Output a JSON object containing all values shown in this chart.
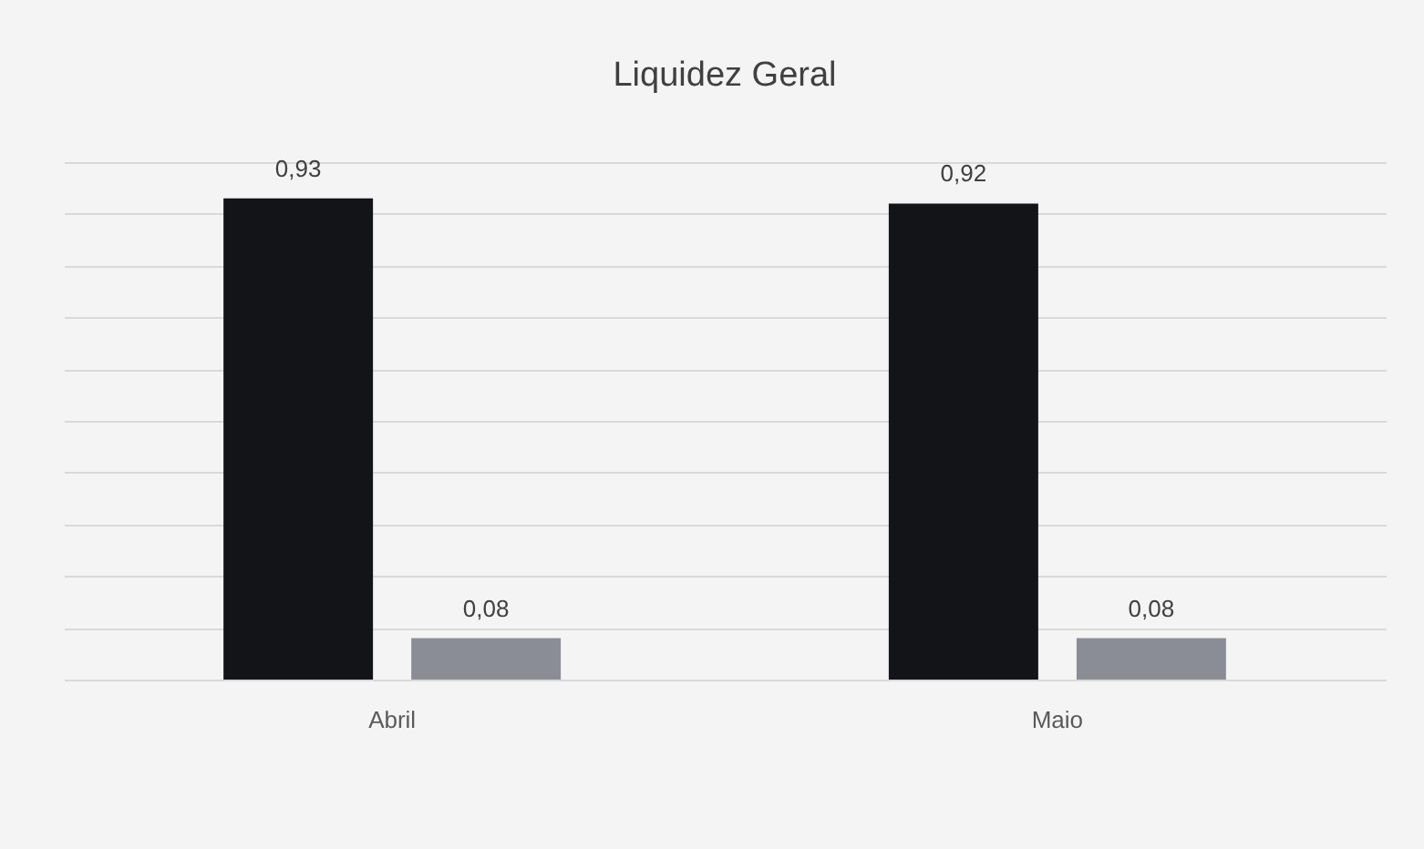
{
  "chart_data": {
    "type": "bar",
    "title": "Liquidez Geral",
    "categories": [
      "Abril",
      "Maio"
    ],
    "series": [
      {
        "color": "#121418",
        "values": [
          0.93,
          0.92
        ],
        "value_labels": [
          "0,93",
          "0,92"
        ]
      },
      {
        "color": "#8a8d96",
        "values": [
          0.08,
          0.08
        ],
        "value_labels": [
          "0,08",
          "0,08"
        ]
      }
    ],
    "ylim": [
      0,
      1
    ],
    "yticks": [
      {
        "value": 0,
        "label": null
      },
      {
        "value": 0.1,
        "label": null
      },
      {
        "value": 0.2,
        "label": null
      },
      {
        "value": 0.3,
        "label": null
      },
      {
        "value": 0.4,
        "label": null
      },
      {
        "value": 0.5,
        "label": null
      },
      {
        "value": 0.6,
        "label": null
      },
      {
        "value": 0.7,
        "label": null
      },
      {
        "value": 0.8,
        "label": null
      },
      {
        "value": 0.9,
        "label": null
      },
      {
        "value": 1,
        "label": null
      }
    ],
    "grid": "y",
    "tick_labels": "x",
    "legend": false
  }
}
